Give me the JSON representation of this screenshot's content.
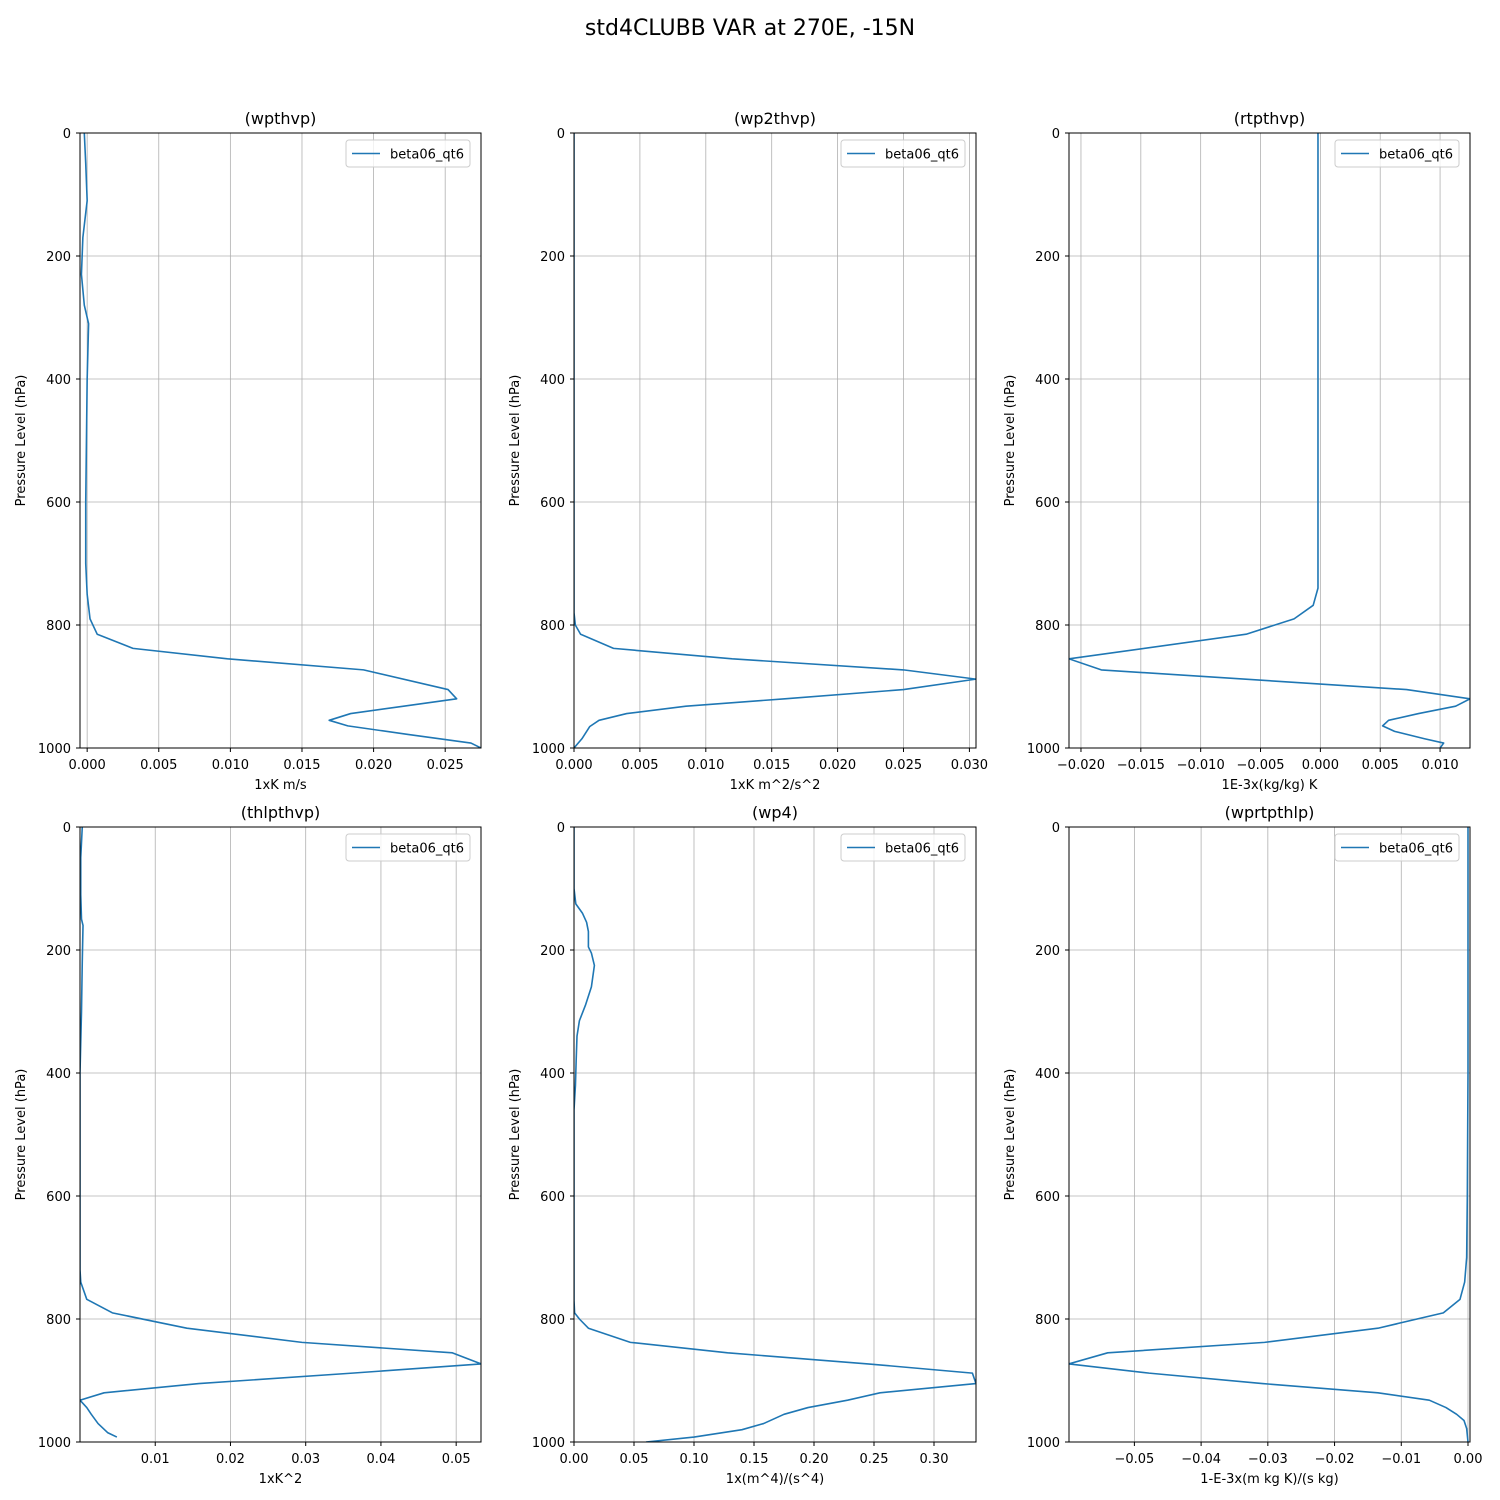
{
  "figure": {
    "suptitle": "std4CLUBB VAR at 270E, -15N"
  },
  "chart_data": [
    {
      "type": "line",
      "title": "(wpthvp)",
      "xlabel": "1xK m/s",
      "ylabel": "Pressure Level (hPa)",
      "xlim": [
        -0.0005,
        0.0275
      ],
      "ylim": [
        1000,
        0
      ],
      "xticks": [
        0,
        0.005,
        0.01,
        0.015,
        0.02,
        0.025
      ],
      "xtick_labels": [
        "0.000",
        "0.005",
        "0.010",
        "0.015",
        "0.020",
        "0.025"
      ],
      "yticks": [
        0,
        200,
        400,
        600,
        800,
        1000
      ],
      "ytick_labels": [
        "0",
        "200",
        "400",
        "600",
        "800",
        "1000"
      ],
      "grid": true,
      "legend": "upper right",
      "series": [
        {
          "name": "beta06_qt6",
          "x": [
            -0.0002,
            -0.0001,
            0.0,
            -0.0003,
            -0.0004,
            -0.0002,
            0.0001,
            0.0,
            -0.0001,
            -0.0001,
            0.0,
            0.0002,
            0.0007,
            0.0032,
            0.0098,
            0.0193,
            0.0252,
            0.0258,
            0.0221,
            0.0184,
            0.0169,
            0.0182,
            0.0224,
            0.0268,
            0.0275
          ],
          "y": [
            0,
            50,
            110,
            170,
            230,
            280,
            310,
            400,
            600,
            700,
            750,
            790,
            815,
            838,
            855,
            873,
            905,
            920,
            932,
            944,
            955,
            964,
            978,
            992,
            1000
          ],
          "color": "#1f77b4"
        }
      ]
    },
    {
      "type": "line",
      "title": "(wp2thvp)",
      "xlabel": "1xK m^2/s^2",
      "ylabel": "Pressure Level (hPa)",
      "xlim": [
        0.0,
        0.0305
      ],
      "ylim": [
        1000,
        0
      ],
      "xticks": [
        0,
        0.005,
        0.01,
        0.015,
        0.02,
        0.025,
        0.03
      ],
      "xtick_labels": [
        "0.000",
        "0.005",
        "0.010",
        "0.015",
        "0.020",
        "0.025",
        "0.030"
      ],
      "yticks": [
        0,
        200,
        400,
        600,
        800,
        1000
      ],
      "ytick_labels": [
        "0",
        "200",
        "400",
        "600",
        "800",
        "1000"
      ],
      "grid": true,
      "legend": "upper right",
      "series": [
        {
          "name": "beta06_qt6",
          "x": [
            0.0,
            0.0,
            0.0001,
            0.0005,
            0.003,
            0.012,
            0.025,
            0.0305,
            0.025,
            0.016,
            0.0085,
            0.004,
            0.0019,
            0.0012,
            0.0006,
            0.0
          ],
          "y": [
            0,
            780,
            800,
            815,
            838,
            855,
            873,
            888,
            905,
            920,
            932,
            944,
            955,
            965,
            985,
            1000
          ],
          "color": "#1f77b4"
        }
      ]
    },
    {
      "type": "line",
      "title": "(rtpthvp)",
      "xlabel": "1E-3x(kg/kg) K",
      "ylabel": "Pressure Level (hPa)",
      "xlim": [
        -0.021,
        0.0125
      ],
      "ylim": [
        1000,
        0
      ],
      "xticks": [
        -0.02,
        -0.015,
        -0.01,
        -0.005,
        0,
        0.005,
        0.01
      ],
      "xtick_labels": [
        "−0.020",
        "−0.015",
        "−0.010",
        "−0.005",
        "0.000",
        "0.005",
        "0.010"
      ],
      "yticks": [
        0,
        200,
        400,
        600,
        800,
        1000
      ],
      "ytick_labels": [
        "0",
        "200",
        "400",
        "600",
        "800",
        "1000"
      ],
      "grid": true,
      "legend": "upper right",
      "series": [
        {
          "name": "beta06_qt6",
          "x": [
            -0.0002,
            -0.0002,
            -0.0002,
            -0.0002,
            -0.0002,
            -0.0002,
            -0.0006,
            -0.0022,
            -0.0062,
            -0.021,
            -0.0183,
            0.0072,
            0.0125,
            0.0113,
            0.0082,
            0.0057,
            0.0052,
            0.0062,
            0.0087,
            0.0103,
            0.01
          ],
          "y": [
            0,
            200,
            400,
            600,
            700,
            740,
            768,
            790,
            815,
            855,
            873,
            905,
            920,
            932,
            944,
            955,
            964,
            973,
            985,
            992,
            1000
          ],
          "color": "#1f77b4"
        }
      ]
    },
    {
      "type": "line",
      "title": "(thlpthvp)",
      "xlabel": "1xK^2",
      "ylabel": "Pressure Level (hPa)",
      "xlim": [
        0.0,
        0.0533
      ],
      "ylim": [
        1000,
        0
      ],
      "xticks": [
        0.01,
        0.02,
        0.03,
        0.04,
        0.05
      ],
      "xtick_labels": [
        "0.01",
        "0.02",
        "0.03",
        "0.04",
        "0.05"
      ],
      "yticks": [
        0,
        200,
        400,
        600,
        800,
        1000
      ],
      "ytick_labels": [
        "0",
        "200",
        "400",
        "600",
        "800",
        "1000"
      ],
      "grid": true,
      "legend": "upper right",
      "series": [
        {
          "name": "beta06_qt6",
          "x": [
            0.0003,
            0.0001,
            0.0001,
            0.0002,
            0.0004,
            0.0003,
            0.0002,
            0.0,
            0.0,
            0.0001,
            0.0009,
            0.0043,
            0.0142,
            0.0295,
            0.0495,
            0.0533,
            0.0362,
            0.0158,
            0.0032,
            0.0,
            0.0009,
            0.0015,
            0.0024,
            0.0037,
            0.0049
          ],
          "y": [
            0,
            50,
            110,
            150,
            160,
            220,
            300,
            400,
            720,
            740,
            768,
            790,
            815,
            838,
            855,
            873,
            888,
            905,
            920,
            932,
            944,
            955,
            970,
            985,
            992
          ],
          "color": "#1f77b4"
        }
      ]
    },
    {
      "type": "line",
      "title": "(wp4)",
      "xlabel": "1x(m^4)/(s^4)",
      "ylabel": "Pressure Level (hPa)",
      "xlim": [
        0.0,
        0.335
      ],
      "ylim": [
        1000,
        0
      ],
      "xticks": [
        0,
        0.05,
        0.1,
        0.15,
        0.2,
        0.25,
        0.3
      ],
      "xtick_labels": [
        "0.00",
        "0.05",
        "0.10",
        "0.15",
        "0.20",
        "0.25",
        "0.30"
      ],
      "yticks": [
        0,
        200,
        400,
        600,
        800,
        1000
      ],
      "ytick_labels": [
        "0",
        "200",
        "400",
        "600",
        "800",
        "1000"
      ],
      "grid": true,
      "legend": "upper right",
      "series": [
        {
          "name": "beta06_qt6",
          "x": [
            0.0,
            0.0,
            0.0015,
            0.007,
            0.0105,
            0.012,
            0.012,
            0.0145,
            0.017,
            0.0145,
            0.0095,
            0.0045,
            0.0025,
            0.0018,
            0.0012,
            0.0,
            0.0,
            0.0,
            0.0005,
            0.0045,
            0.012,
            0.047,
            0.128,
            0.245,
            0.332,
            0.335,
            0.255,
            0.228,
            0.195,
            0.175,
            0.158,
            0.14,
            0.1,
            0.06
          ],
          "y": [
            0,
            100,
            125,
            140,
            155,
            170,
            195,
            205,
            225,
            260,
            290,
            315,
            340,
            380,
            420,
            460,
            700,
            770,
            790,
            800,
            815,
            838,
            855,
            873,
            888,
            905,
            920,
            932,
            944,
            955,
            970,
            980,
            992,
            1000
          ],
          "color": "#1f77b4"
        }
      ]
    },
    {
      "type": "line",
      "title": "(wprtpthlp)",
      "xlabel": "1-E-3x(m kg K)/(s kg)",
      "ylabel": "Pressure Level (hPa)",
      "xlim": [
        -0.0598,
        0.0003
      ],
      "ylim": [
        1000,
        0
      ],
      "xticks": [
        -0.05,
        -0.04,
        -0.03,
        -0.02,
        -0.01,
        0
      ],
      "xtick_labels": [
        "−0.05",
        "−0.04",
        "−0.03",
        "−0.02",
        "−0.01",
        "0.00"
      ],
      "yticks": [
        0,
        200,
        400,
        600,
        800,
        1000
      ],
      "ytick_labels": [
        "0",
        "200",
        "400",
        "600",
        "800",
        "1000"
      ],
      "grid": true,
      "legend": "upper right",
      "series": [
        {
          "name": "beta06_qt6",
          "x": [
            0.0,
            0.0,
            -0.0001,
            -0.0002,
            -0.0005,
            -0.0012,
            -0.0037,
            -0.0135,
            -0.0305,
            -0.054,
            -0.0598,
            -0.0478,
            -0.0308,
            -0.0135,
            -0.0058,
            -0.0033,
            -0.0017,
            -0.0006,
            -0.0002,
            0.0
          ],
          "y": [
            0,
            400,
            600,
            700,
            740,
            768,
            790,
            815,
            838,
            855,
            873,
            888,
            905,
            920,
            932,
            944,
            955,
            965,
            978,
            1000
          ],
          "color": "#1f77b4"
        }
      ]
    }
  ]
}
